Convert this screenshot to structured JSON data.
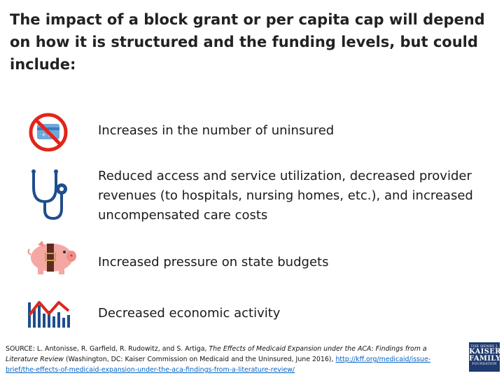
{
  "title": "The impact of a block grant or per capita cap will depend on how it is structured and the funding levels, but could include:",
  "items": [
    {
      "icon": "no-insurance-card-icon",
      "text": "Increases in the number of uninsured"
    },
    {
      "icon": "stethoscope-icon",
      "text": "Reduced access and service utilization, decreased provider revenues (to hospitals, nursing homes, etc.), and increased uncompensated care costs"
    },
    {
      "icon": "piggy-bank-belt-icon",
      "text": "Increased pressure on state budgets"
    },
    {
      "icon": "declining-chart-icon",
      "text": "Decreased economic activity"
    }
  ],
  "source": {
    "prefix": "SOURCE: L. Antonisse, R. Garfield, R. Rudowitz, and S. Artiga, ",
    "italic_title": "The Effects of Medicaid Expansion under the ACA: Findings from a Literature Review",
    "middle": " (Washington, DC: Kaiser Commission on Medicaid and the Uninsured, June 2016), ",
    "link": "http://kff.org/medicaid/issue-brief/the-effects-of-medicaid-expansion-under-the-aca-findings-from-a-literature-review/"
  },
  "logo": {
    "line1": "THE HENRY J.",
    "line2": "KAISER",
    "line3": "FAMILY",
    "line4": "FOUNDATION"
  },
  "colors": {
    "prohibition_red": "#e1251b",
    "card_blue": "#6fa8dc",
    "piggy_pink": "#f4a7a3",
    "chart_blue": "#1f4e8c",
    "chart_line_red": "#d9281e",
    "logo_navy": "#1f3a6e",
    "link_blue": "#0563c1"
  }
}
